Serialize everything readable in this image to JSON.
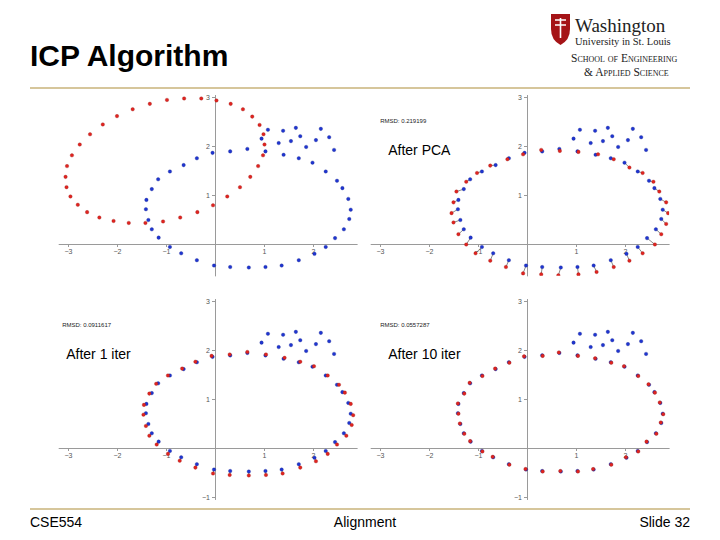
{
  "slide": {
    "title": "ICP Algorithm",
    "logo": [
      "Washington",
      "University in St. Louis",
      "School of Engineering",
      "& Applied Science"
    ],
    "footer": {
      "left": "CSE554",
      "center": "Alignment",
      "right": "Slide 32"
    }
  },
  "chart_data": [
    {
      "type": "scatter",
      "grid": false,
      "xlim": [
        -3.2,
        2.9
      ],
      "ylim": [
        -0.65,
        3.05
      ],
      "xticks": [
        {
          "value": -3,
          "label": "−3"
        },
        {
          "value": -2,
          "label": "−2"
        },
        {
          "value": -1,
          "label": "−1"
        },
        1,
        2
      ],
      "yticks": [
        1,
        2,
        3
      ],
      "series": [
        {
          "color": "#1f35d0",
          "marker": "circle",
          "x": [
            2.77,
            2.72,
            2.6,
            2.49,
            2.26,
            1.99,
            1.71,
            1.4,
            1.03,
            0.66,
            0.31,
            -0.05,
            -0.37,
            -0.64,
            -0.92,
            -1.16,
            -1.29,
            -1.4,
            -1.41,
            -1.36,
            -1.29,
            -1.15,
            -0.92,
            -0.69,
            -0.37,
            -0.02,
            0.31,
            0.69,
            1.03,
            1.36,
            1.71,
            2.03,
            2.26,
            2.45,
            2.63,
            2.74,
            1.08,
            1.39,
            1.65,
            1.55,
            1.86,
            2.16,
            2.06,
            2.43,
            1.3,
            1.74,
            2.33,
            0.95
          ],
          "y": [
            0.7,
            0.92,
            1.14,
            1.29,
            1.48,
            1.66,
            1.75,
            1.82,
            1.89,
            1.94,
            1.89,
            1.86,
            1.75,
            1.61,
            1.48,
            1.32,
            1.12,
            0.9,
            0.71,
            0.49,
            0.3,
            0.13,
            -0.06,
            -0.19,
            -0.33,
            -0.44,
            -0.47,
            -0.48,
            -0.47,
            -0.44,
            -0.33,
            -0.2,
            -0.06,
            0.12,
            0.3,
            0.51,
            2.33,
            2.31,
            2.37,
            2.1,
            1.98,
            2.35,
            2.12,
            1.92,
            2.06,
            2.2,
            2.18,
            2.15
          ]
        },
        {
          "color": "#e02420",
          "marker": "circle",
          "x": [
            0.99,
            0.91,
            0.76,
            0.57,
            0.32,
            0.03,
            -0.28,
            -0.63,
            -0.98,
            -1.33,
            -1.68,
            -2.0,
            -2.29,
            -2.55,
            -2.76,
            -2.92,
            -3.02,
            -3.05,
            -3.03,
            -2.95,
            -2.8,
            -2.61,
            -2.36,
            -2.07,
            -1.76,
            -1.42,
            -1.06,
            -0.71,
            -0.36,
            -0.04,
            0.25,
            0.51,
            0.72,
            0.88,
            0.98,
            1.01
          ],
          "y": [
            2.24,
            2.43,
            2.6,
            2.75,
            2.86,
            2.93,
            2.97,
            2.97,
            2.94,
            2.86,
            2.75,
            2.61,
            2.44,
            2.24,
            2.03,
            1.81,
            1.59,
            1.37,
            1.16,
            0.97,
            0.8,
            0.65,
            0.54,
            0.47,
            0.43,
            0.43,
            0.46,
            0.54,
            0.65,
            0.79,
            0.97,
            1.16,
            1.37,
            1.59,
            1.81,
            2.03
          ]
        }
      ]
    },
    {
      "type": "scatter",
      "grid": false,
      "subtitle": "RMSD: 0.219199",
      "annotation": "After PCA",
      "xlim": [
        -3.2,
        2.9
      ],
      "ylim": [
        -0.65,
        3.05
      ],
      "xticks": [
        {
          "value": -3,
          "label": "−3"
        },
        {
          "value": -2,
          "label": "−2"
        },
        {
          "value": -1,
          "label": "−1"
        },
        1,
        2
      ],
      "yticks": [
        1,
        2,
        3
      ],
      "series": [
        {
          "color": "#1f35d0",
          "marker": "circle",
          "x": [
            2.77,
            2.72,
            2.6,
            2.49,
            2.26,
            1.99,
            1.71,
            1.4,
            1.03,
            0.66,
            0.31,
            -0.05,
            -0.37,
            -0.64,
            -0.92,
            -1.16,
            -1.29,
            -1.4,
            -1.41,
            -1.36,
            -1.29,
            -1.15,
            -0.92,
            -0.69,
            -0.37,
            -0.02,
            0.31,
            0.69,
            1.03,
            1.36,
            1.71,
            2.03,
            2.26,
            2.45,
            2.63,
            2.74,
            1.08,
            1.39,
            1.65,
            1.55,
            1.86,
            2.16,
            2.06,
            2.43,
            1.3,
            1.74,
            2.33,
            0.95
          ],
          "y": [
            0.7,
            0.92,
            1.14,
            1.29,
            1.48,
            1.66,
            1.75,
            1.82,
            1.89,
            1.94,
            1.89,
            1.86,
            1.75,
            1.61,
            1.48,
            1.32,
            1.12,
            0.9,
            0.71,
            0.49,
            0.3,
            0.13,
            -0.06,
            -0.19,
            -0.33,
            -0.44,
            -0.47,
            -0.48,
            -0.47,
            -0.44,
            -0.33,
            -0.2,
            -0.06,
            0.12,
            0.3,
            0.51,
            2.33,
            2.31,
            2.37,
            2.1,
            1.98,
            2.35,
            2.12,
            1.92,
            2.06,
            2.2,
            2.18,
            2.15
          ]
        },
        {
          "color": "#e02420",
          "marker": "circle",
          "x": [
            2.88,
            2.84,
            2.7,
            2.58,
            2.36,
            2.09,
            1.77,
            1.45,
            1.05,
            0.67,
            0.29,
            -0.08,
            -0.4,
            -0.75,
            -1.02,
            -1.24,
            -1.44,
            -1.5,
            -1.54,
            -1.5,
            -1.4,
            -1.24,
            -1.05,
            -0.75,
            -0.43,
            -0.08,
            0.29,
            0.64,
            1.05,
            1.42,
            1.77,
            2.09,
            2.36,
            2.61,
            2.74,
            2.84
          ],
          "y": [
            0.63,
            0.85,
            1.07,
            1.27,
            1.45,
            1.56,
            1.73,
            1.83,
            1.88,
            1.9,
            1.92,
            1.83,
            1.73,
            1.6,
            1.45,
            1.27,
            1.07,
            0.85,
            0.63,
            0.44,
            0.2,
            -0.01,
            -0.19,
            -0.34,
            -0.47,
            -0.6,
            -0.62,
            -0.64,
            -0.62,
            -0.57,
            -0.47,
            -0.34,
            -0.19,
            -0.01,
            0.2,
            0.41
          ],
          "matches": [
            0,
            1,
            2,
            3,
            4,
            5,
            6,
            7,
            8,
            9,
            10,
            11,
            12,
            13,
            14,
            15,
            16,
            17,
            18,
            19,
            20,
            21,
            22,
            23,
            24,
            25,
            26,
            27,
            28,
            29,
            30,
            31,
            32,
            33,
            34,
            35
          ]
        }
      ]
    },
    {
      "type": "scatter",
      "grid": false,
      "subtitle": "RMSD: 0.0911617",
      "annotation": "After 1 iter",
      "xlim": [
        -3.2,
        2.9
      ],
      "ylim": [
        -1.05,
        3.05
      ],
      "xticks": [
        {
          "value": -3,
          "label": "−3"
        },
        {
          "value": -2,
          "label": "−2"
        },
        {
          "value": -1,
          "label": "−1"
        },
        1,
        2
      ],
      "yticks": [
        {
          "value": -1,
          "label": "−1"
        },
        1,
        2,
        3
      ],
      "series": [
        {
          "color": "#1f35d0",
          "marker": "circle",
          "x": [
            2.77,
            2.72,
            2.6,
            2.49,
            2.26,
            1.99,
            1.71,
            1.4,
            1.03,
            0.66,
            0.31,
            -0.05,
            -0.37,
            -0.64,
            -0.92,
            -1.16,
            -1.29,
            -1.4,
            -1.41,
            -1.36,
            -1.29,
            -1.15,
            -0.92,
            -0.69,
            -0.37,
            -0.02,
            0.31,
            0.69,
            1.03,
            1.36,
            1.71,
            2.03,
            2.26,
            2.45,
            2.63,
            2.74,
            1.08,
            1.39,
            1.65,
            1.55,
            1.86,
            2.16,
            2.06,
            2.43,
            1.3,
            1.74,
            2.33,
            0.95
          ],
          "y": [
            0.7,
            0.92,
            1.14,
            1.29,
            1.48,
            1.66,
            1.75,
            1.82,
            1.89,
            1.94,
            1.89,
            1.86,
            1.75,
            1.61,
            1.48,
            1.32,
            1.12,
            0.9,
            0.71,
            0.49,
            0.3,
            0.13,
            -0.06,
            -0.19,
            -0.33,
            -0.44,
            -0.47,
            -0.48,
            -0.47,
            -0.44,
            -0.33,
            -0.2,
            -0.06,
            0.12,
            0.3,
            0.51,
            2.33,
            2.31,
            2.37,
            2.1,
            1.98,
            2.35,
            2.12,
            1.92,
            2.06,
            2.2,
            2.18,
            2.15
          ]
        },
        {
          "color": "#e02420",
          "marker": "circle",
          "x": [
            2.82,
            2.77,
            2.65,
            2.53,
            2.3,
            2.02,
            1.74,
            1.42,
            1.04,
            0.66,
            0.3,
            -0.07,
            -0.4,
            -0.67,
            -0.96,
            -1.2,
            -1.34,
            -1.45,
            -1.46,
            -1.41,
            -1.34,
            -1.19,
            -0.96,
            -0.72,
            -0.4,
            -0.04,
            0.3,
            0.69,
            1.04,
            1.38,
            1.74,
            2.06,
            2.3,
            2.49,
            2.68,
            2.79
          ],
          "y": [
            0.67,
            0.9,
            1.13,
            1.29,
            1.48,
            1.67,
            1.76,
            1.84,
            1.91,
            1.96,
            1.91,
            1.88,
            1.76,
            1.62,
            1.48,
            1.31,
            1.11,
            0.88,
            0.68,
            0.45,
            0.25,
            0.07,
            -0.12,
            -0.26,
            -0.4,
            -0.52,
            -0.55,
            -0.56,
            -0.55,
            -0.52,
            -0.4,
            -0.27,
            -0.12,
            0.07,
            0.25,
            0.47
          ],
          "matches": [
            0,
            1,
            2,
            3,
            4,
            5,
            6,
            7,
            8,
            9,
            10,
            11,
            12,
            13,
            14,
            15,
            16,
            17,
            18,
            19,
            20,
            21,
            22,
            23,
            24,
            25,
            26,
            27,
            28,
            29,
            30,
            31,
            32,
            33,
            34,
            35
          ]
        }
      ]
    },
    {
      "type": "scatter",
      "grid": false,
      "subtitle": "RMSD: 0.0557287",
      "annotation": "After 10 iter",
      "xlim": [
        -3.2,
        2.9
      ],
      "ylim": [
        -1.05,
        3.05
      ],
      "xticks": [
        {
          "value": -3,
          "label": "−3"
        },
        {
          "value": -2,
          "label": "−2"
        },
        {
          "value": -1,
          "label": "−1"
        },
        1,
        2
      ],
      "yticks": [
        {
          "value": -1,
          "label": "−1"
        },
        1,
        2,
        3
      ],
      "series": [
        {
          "color": "#1f35d0",
          "marker": "circle",
          "x": [
            2.77,
            2.72,
            2.6,
            2.49,
            2.26,
            1.99,
            1.71,
            1.4,
            1.03,
            0.66,
            0.31,
            -0.05,
            -0.37,
            -0.64,
            -0.92,
            -1.16,
            -1.29,
            -1.4,
            -1.41,
            -1.36,
            -1.29,
            -1.15,
            -0.92,
            -0.69,
            -0.37,
            -0.02,
            0.31,
            0.69,
            1.03,
            1.36,
            1.71,
            2.03,
            2.26,
            2.45,
            2.63,
            2.74,
            1.08,
            1.39,
            1.65,
            1.55,
            1.86,
            2.16,
            2.06,
            2.43,
            1.3,
            1.74,
            2.33,
            0.95
          ],
          "y": [
            0.7,
            0.92,
            1.14,
            1.29,
            1.48,
            1.66,
            1.75,
            1.82,
            1.89,
            1.94,
            1.89,
            1.86,
            1.75,
            1.61,
            1.48,
            1.32,
            1.12,
            0.9,
            0.71,
            0.49,
            0.3,
            0.13,
            -0.06,
            -0.19,
            -0.33,
            -0.44,
            -0.47,
            -0.48,
            -0.47,
            -0.44,
            -0.33,
            -0.2,
            -0.06,
            0.12,
            0.3,
            0.51,
            2.33,
            2.31,
            2.37,
            2.1,
            1.98,
            2.35,
            2.12,
            1.92,
            2.06,
            2.2,
            2.18,
            2.15
          ]
        },
        {
          "color": "#e02420",
          "marker": "circle",
          "x": [
            2.78,
            2.71,
            2.61,
            2.48,
            2.27,
            1.98,
            1.72,
            1.39,
            1.04,
            0.65,
            0.32,
            -0.06,
            -0.36,
            -0.65,
            -0.91,
            -1.17,
            -1.28,
            -1.41,
            -1.4,
            -1.37,
            -1.28,
            -1.16,
            -0.91,
            -0.7,
            -0.36,
            -0.03,
            0.32,
            0.68,
            1.04,
            1.35,
            1.72,
            2.02,
            2.27,
            2.44,
            2.64,
            2.73
          ],
          "y": [
            0.69,
            0.93,
            1.13,
            1.3,
            1.47,
            1.67,
            1.74,
            1.83,
            1.88,
            1.95,
            1.88,
            1.87,
            1.74,
            1.62,
            1.47,
            1.33,
            1.11,
            0.91,
            0.7,
            0.5,
            0.29,
            0.14,
            -0.07,
            -0.18,
            -0.34,
            -0.43,
            -0.48,
            -0.47,
            -0.48,
            -0.43,
            -0.34,
            -0.19,
            -0.07,
            0.13,
            0.29,
            0.52
          ]
        }
      ]
    }
  ]
}
